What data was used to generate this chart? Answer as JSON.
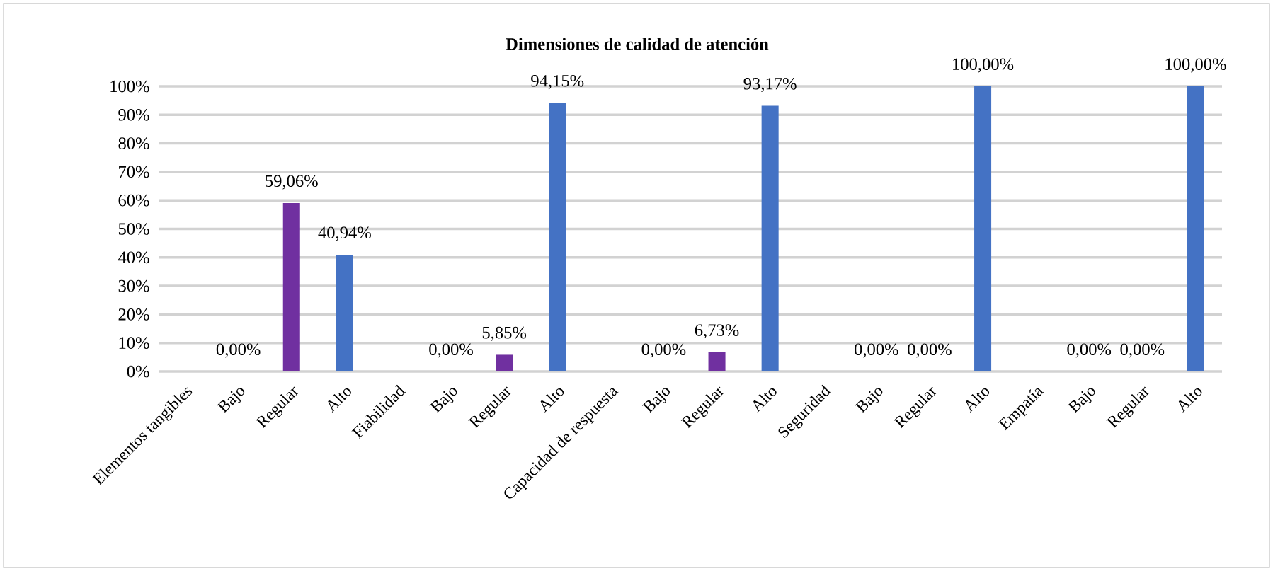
{
  "chart_data": {
    "type": "bar",
    "title": "Dimensiones de calidad de atención",
    "categories": [
      "Elementos tangibles",
      "Bajo",
      "Regular",
      "Alto",
      "Fiabilidad",
      "Bajo",
      "Regular",
      "Alto",
      "Capacidad de respuesta",
      "Bajo",
      "Regular",
      "Alto",
      "Seguridad",
      "Bajo",
      "Regular",
      "Alto",
      "Empatía",
      "Bajo",
      "Regular",
      "Alto"
    ],
    "values": [
      null,
      0,
      59.06,
      40.94,
      null,
      0,
      5.85,
      94.15,
      null,
      0,
      6.73,
      93.17,
      null,
      0,
      0,
      100,
      null,
      0,
      0,
      100
    ],
    "value_labels": [
      null,
      "0,00%",
      "59,06%",
      "40,94%",
      null,
      "0,00%",
      "5,85%",
      "94,15%",
      null,
      "0,00%",
      "6,73%",
      "93,17%",
      null,
      "0,00%",
      "0,00%",
      "100,00%",
      null,
      "0,00%",
      "0,00%",
      "100,00%"
    ],
    "colors": [
      null,
      "#1f3864",
      "#7030a0",
      "#4472c4",
      null,
      "#1f3864",
      "#7030a0",
      "#4472c4",
      null,
      "#1f3864",
      "#7030a0",
      "#4472c4",
      null,
      "#1f3864",
      "#7030a0",
      "#4472c4",
      null,
      "#1f3864",
      "#7030a0",
      "#4472c4"
    ],
    "ylim": [
      0,
      100
    ],
    "yticks": [
      {
        "value": 0,
        "label": "0%"
      },
      {
        "value": 10,
        "label": "10%"
      },
      {
        "value": 20,
        "label": "20%"
      },
      {
        "value": 30,
        "label": "30%"
      },
      {
        "value": 40,
        "label": "40%"
      },
      {
        "value": 50,
        "label": "50%"
      },
      {
        "value": 60,
        "label": "60%"
      },
      {
        "value": 70,
        "label": "70%"
      },
      {
        "value": 80,
        "label": "80%"
      },
      {
        "value": 90,
        "label": "90%"
      },
      {
        "value": 100,
        "label": "100%"
      }
    ],
    "grid": "y"
  }
}
